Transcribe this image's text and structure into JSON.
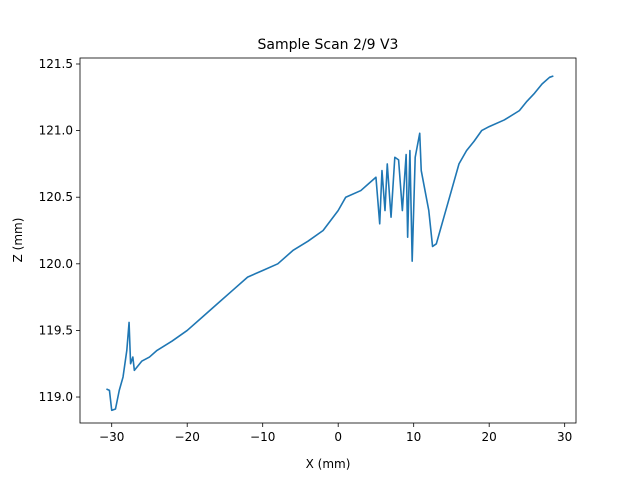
{
  "chart_data": {
    "type": "line",
    "title": "Sample Scan 2/9 V3",
    "x_label": "X (mm)",
    "y_label": "Z (mm)",
    "x": [
      -30.7,
      -30.3,
      -30.0,
      -29.5,
      -29,
      -28.5,
      -28,
      -27.7,
      -27.5,
      -27.2,
      -27,
      -26,
      -25,
      -24,
      -22,
      -20,
      -18,
      -16,
      -14,
      -12,
      -10,
      -8,
      -6,
      -4,
      -2,
      0,
      1,
      3,
      4,
      5,
      5.5,
      5.8,
      6.2,
      6.5,
      7,
      7.5,
      8,
      8.5,
      9,
      9.2,
      9.5,
      9.8,
      10.2,
      10.8,
      11,
      11.5,
      12,
      12.5,
      13,
      13.5,
      14,
      15,
      16,
      17,
      18,
      19,
      20,
      22,
      24,
      25,
      26,
      27,
      28,
      28.5
    ],
    "series": [
      {
        "name": "Z",
        "color": "#1f77b4",
        "values": [
          119.06,
          119.05,
          118.9,
          118.91,
          119.05,
          119.15,
          119.35,
          119.56,
          119.25,
          119.3,
          119.2,
          119.27,
          119.3,
          119.35,
          119.42,
          119.5,
          119.6,
          119.7,
          119.8,
          119.9,
          119.95,
          120.0,
          120.1,
          120.17,
          120.25,
          120.4,
          120.5,
          120.55,
          120.6,
          120.65,
          120.3,
          120.7,
          120.4,
          120.75,
          120.35,
          120.8,
          120.78,
          120.4,
          120.82,
          120.2,
          120.85,
          120.02,
          120.8,
          120.98,
          120.7,
          120.55,
          120.4,
          120.13,
          120.15,
          120.25,
          120.35,
          120.55,
          120.75,
          120.85,
          120.92,
          121.0,
          121.03,
          121.08,
          121.15,
          121.22,
          121.28,
          121.35,
          121.4,
          121.41
        ]
      }
    ],
    "xlim": [
      -34.2,
      31.5
    ],
    "ylim": [
      118.805,
      121.545
    ],
    "xticks": [
      {
        "value": -30,
        "label": "−30"
      },
      {
        "value": -20,
        "label": "−20"
      },
      {
        "value": -10,
        "label": "−10"
      },
      0,
      10,
      20,
      30
    ],
    "yticks": [
      {
        "value": 119,
        "label": "119.0"
      },
      119.5,
      {
        "value": 120,
        "label": "120.0"
      },
      120.5,
      {
        "value": 121,
        "label": "121.0"
      },
      121.5
    ]
  }
}
